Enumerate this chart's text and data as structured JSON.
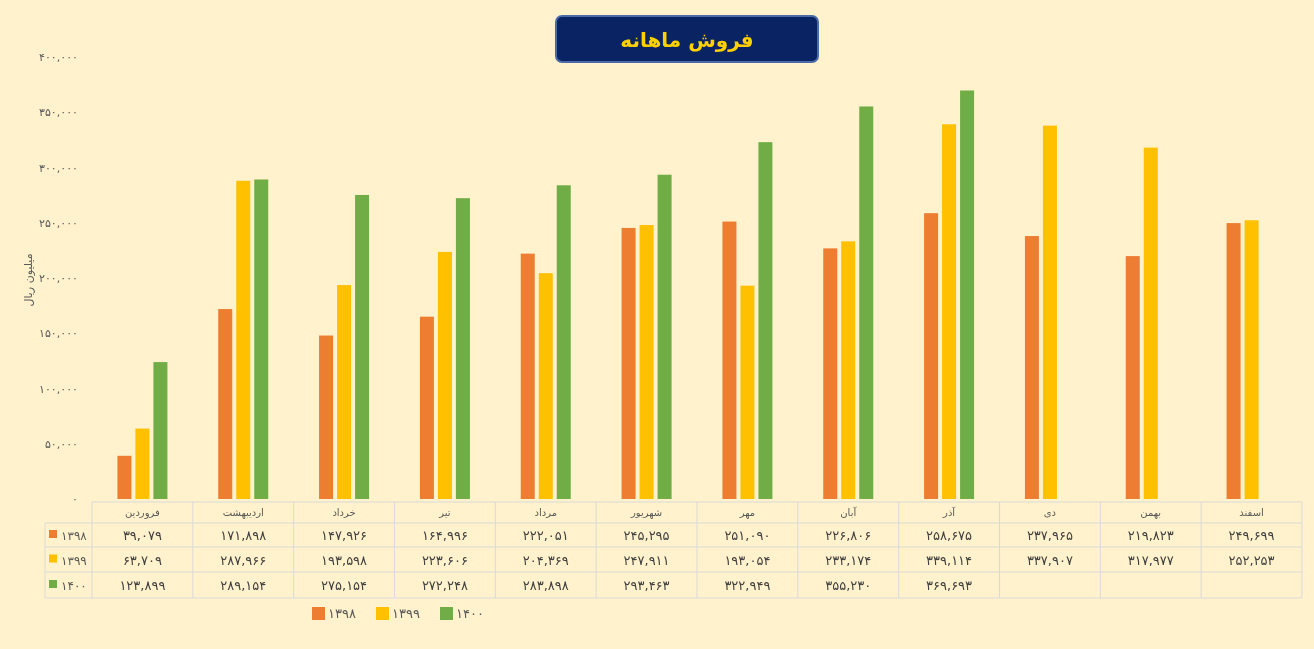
{
  "chart_data": {
    "type": "bar",
    "title": "فروش ماهانه",
    "ylabel": "میلیون ریال",
    "categories": [
      "فروردین",
      "اردیبهشت",
      "خرداد",
      "تیر",
      "مرداد",
      "شهریور",
      "مهر",
      "آبان",
      "آذر",
      "دی",
      "بهمن",
      "اسفند"
    ],
    "series": [
      {
        "name": "۱۳۹۸",
        "color": "#ed7d31",
        "values": [
          39079,
          171898,
          147926,
          164996,
          222051,
          245295,
          251090,
          226806,
          258675,
          237965,
          219823,
          249699
        ],
        "value_labels": [
          "۳۹,۰۷۹",
          "۱۷۱,۸۹۸",
          "۱۴۷,۹۲۶",
          "۱۶۴,۹۹۶",
          "۲۲۲,۰۵۱",
          "۲۴۵,۲۹۵",
          "۲۵۱,۰۹۰",
          "۲۲۶,۸۰۶",
          "۲۵۸,۶۷۵",
          "۲۳۷,۹۶۵",
          "۲۱۹,۸۲۳",
          "۲۴۹,۶۹۹"
        ]
      },
      {
        "name": "۱۳۹۹",
        "color": "#ffc000",
        "values": [
          63709,
          287966,
          193598,
          223606,
          204369,
          247911,
          193054,
          233174,
          339114,
          337907,
          317977,
          252253
        ],
        "value_labels": [
          "۶۳,۷۰۹",
          "۲۸۷,۹۶۶",
          "۱۹۳,۵۹۸",
          "۲۲۳,۶۰۶",
          "۲۰۴,۳۶۹",
          "۲۴۷,۹۱۱",
          "۱۹۳,۰۵۴",
          "۲۳۳,۱۷۴",
          "۳۳۹,۱۱۴",
          "۳۳۷,۹۰۷",
          "۳۱۷,۹۷۷",
          "۲۵۲,۲۵۳"
        ]
      },
      {
        "name": "۱۴۰۰",
        "color": "#70ad47",
        "values": [
          123899,
          289154,
          275154,
          272248,
          283898,
          293463,
          322949,
          355230,
          369693,
          null,
          null,
          null
        ],
        "value_labels": [
          "۱۲۳,۸۹۹",
          "۲۸۹,۱۵۴",
          "۲۷۵,۱۵۴",
          "۲۷۲,۲۴۸",
          "۲۸۳,۸۹۸",
          "۲۹۳,۴۶۳",
          "۳۲۲,۹۴۹",
          "۳۵۵,۲۳۰",
          "۳۶۹,۶۹۳",
          null,
          null,
          null
        ]
      }
    ],
    "ylim": [
      0,
      400000
    ],
    "yticks": [
      {
        "value": 0,
        "label": "۰"
      },
      {
        "value": 50000,
        "label": "۵۰,۰۰۰"
      },
      {
        "value": 100000,
        "label": "۱۰۰,۰۰۰"
      },
      {
        "value": 150000,
        "label": "۱۵۰,۰۰۰"
      },
      {
        "value": 200000,
        "label": "۲۰۰,۰۰۰"
      },
      {
        "value": 250000,
        "label": "۲۵۰,۰۰۰"
      },
      {
        "value": 300000,
        "label": "۳۰۰,۰۰۰"
      },
      {
        "value": 350000,
        "label": "۳۵۰,۰۰۰"
      },
      {
        "value": 400000,
        "label": "۴۰۰,۰۰۰"
      }
    ],
    "legend": "bottom",
    "grid": false
  }
}
